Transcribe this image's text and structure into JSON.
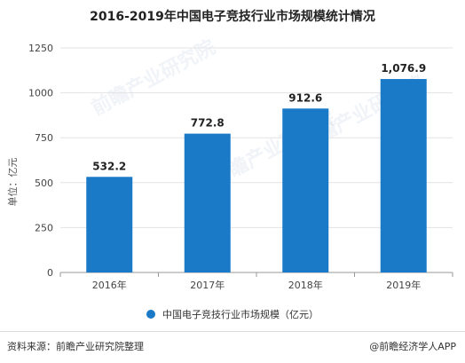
{
  "title": "2016-2019年中国电子竞技行业市场规模统计情况",
  "footer": {
    "source": "资料来源：前瞻产业研究院整理",
    "brand": "@前瞻经济学人APP"
  },
  "watermark": "前瞻产业研究院",
  "colors": {
    "bar": "#1a7ac8",
    "grid": "#e3e3e3",
    "axis": "#999999"
  },
  "chart_data": {
    "type": "bar",
    "title": "2016-2019年中国电子竞技行业市场规模统计情况",
    "ylabel": "单位：亿元",
    "xlabel": "",
    "categories": [
      "2016年",
      "2017年",
      "2018年",
      "2019年"
    ],
    "series": [
      {
        "name": "中国电子竞技行业市场规模（亿元）",
        "values": [
          532.2,
          772.8,
          912.6,
          1076.9
        ]
      }
    ],
    "value_labels": [
      "532.2",
      "772.8",
      "912.6",
      "1,076.9"
    ],
    "ylim": [
      0,
      1250
    ],
    "yticks": [
      "0",
      "250",
      "500",
      "750",
      "1000",
      "1250"
    ],
    "grid": true,
    "legend": "bottom"
  }
}
